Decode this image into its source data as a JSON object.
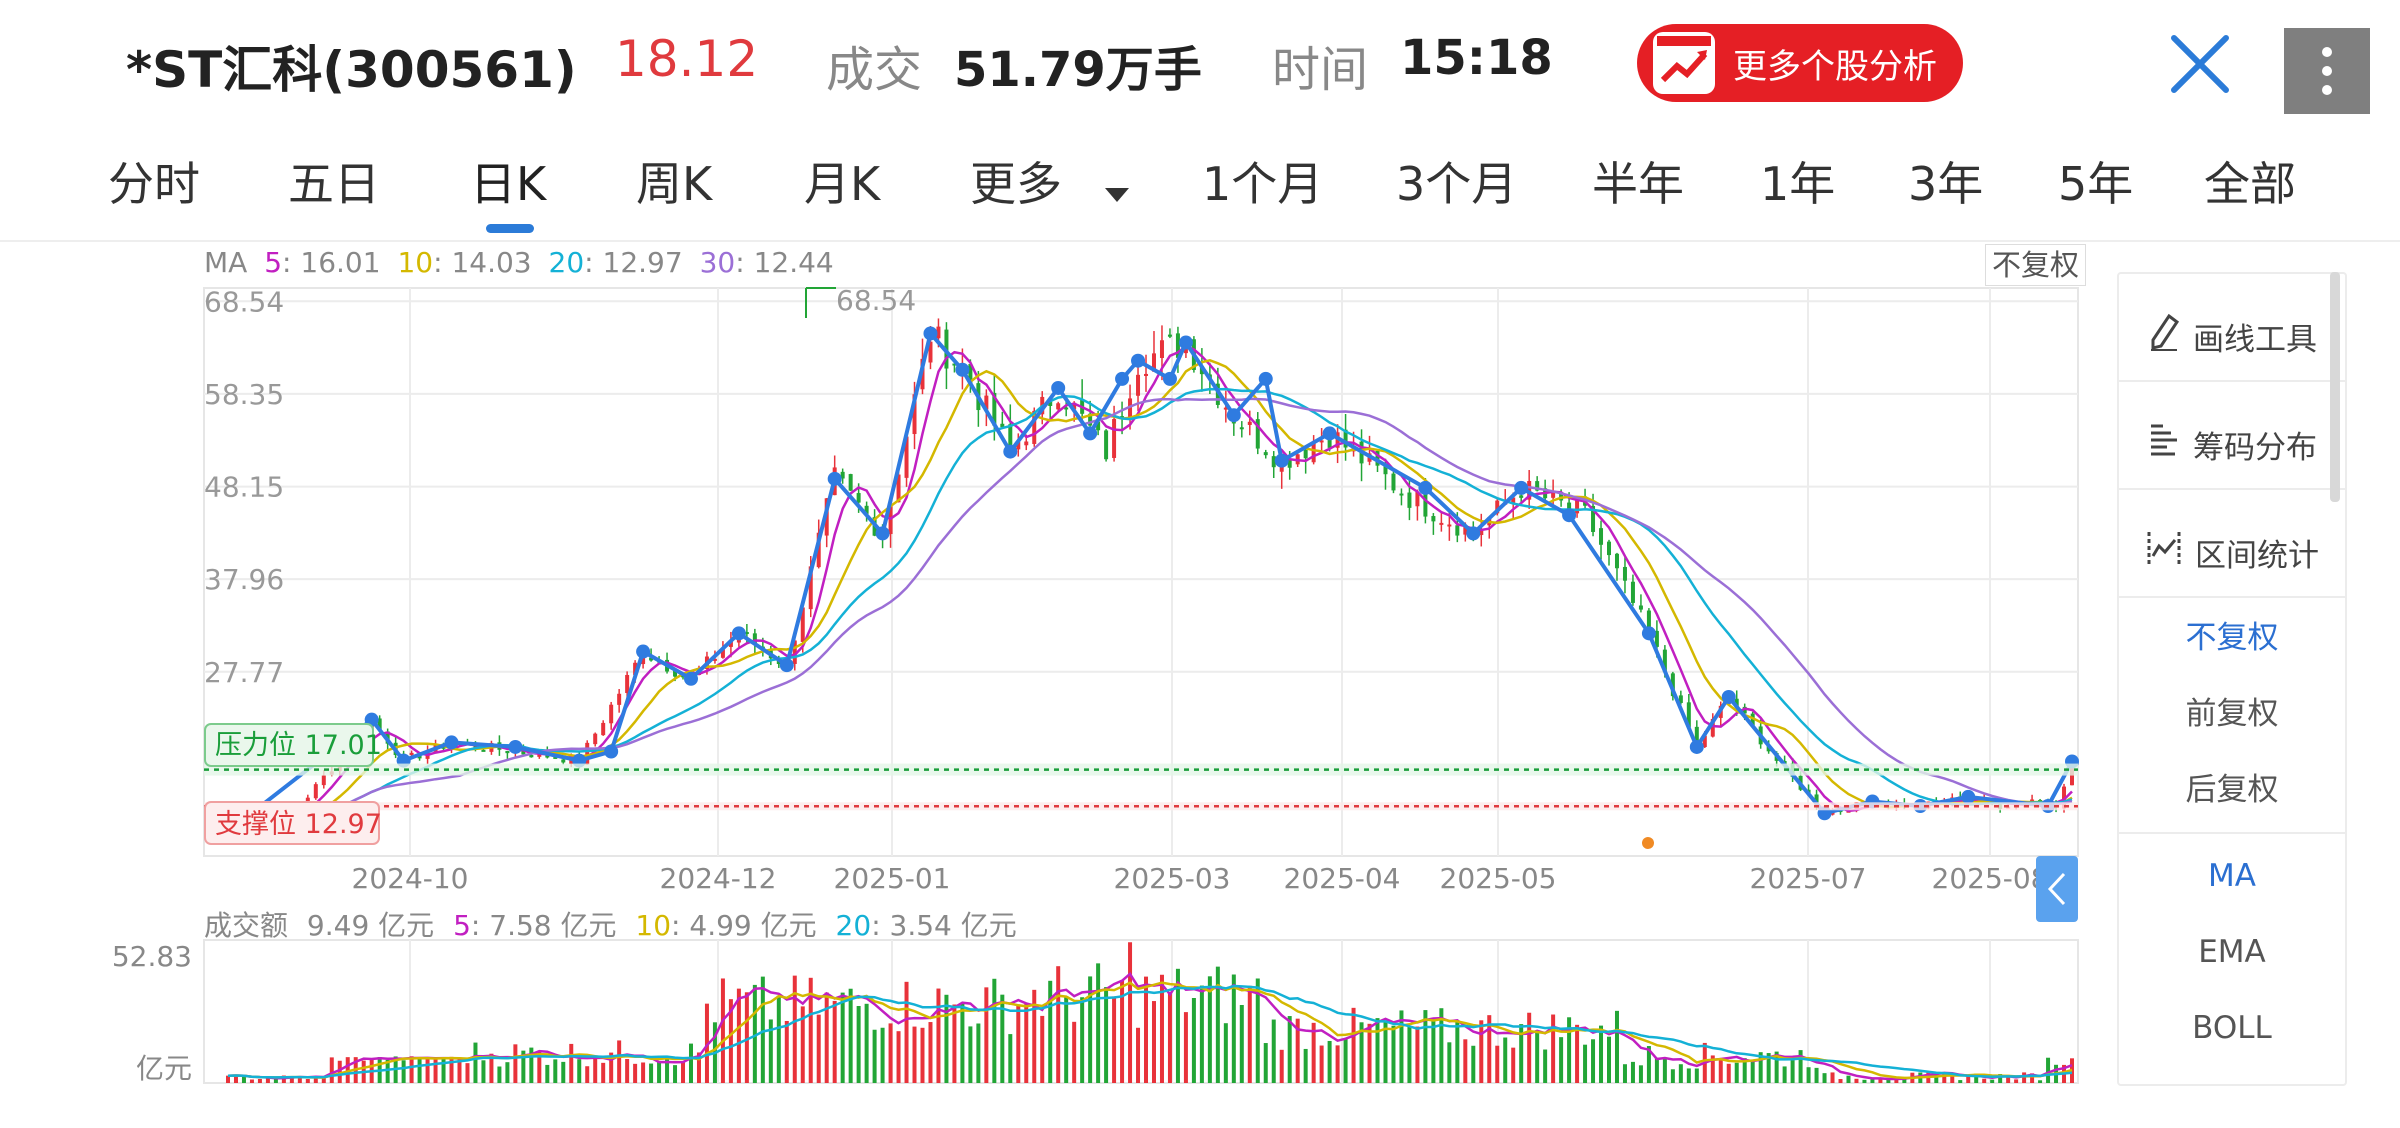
{
  "header": {
    "stock_name": "*ST汇科(300561)",
    "price": "18.12",
    "volume_label": "成交",
    "volume_value": "51.79万手",
    "time_label": "时间",
    "time_value": "15:18",
    "more_button": "更多个股分析",
    "close_icon": "close-icon",
    "menu_icon": "more-vertical-icon"
  },
  "tabs": [
    "分时",
    "五日",
    "日K",
    "周K",
    "月K",
    "更多",
    "1个月",
    "3个月",
    "半年",
    "1年",
    "3年",
    "5年",
    "全部"
  ],
  "active_tab": "日K",
  "ma_legend": {
    "label": "MA",
    "items": [
      {
        "key": "5",
        "value": "16.01",
        "color": "#c11fc1"
      },
      {
        "key": "10",
        "value": "14.03",
        "color": "#d4b800"
      },
      {
        "key": "20",
        "value": "12.97",
        "color": "#14b1d6"
      },
      {
        "key": "30",
        "value": "12.44",
        "color": "#9b6fd6"
      }
    ]
  },
  "adjust_label": "不复权",
  "price_axis": [
    "68.54",
    "58.35",
    "48.15",
    "37.96",
    "27.77"
  ],
  "max_label": "68.54",
  "pressure_label": "压力位 17.01",
  "support_label": "支撑位 12.97",
  "date_axis": [
    "2024-10",
    "2024-12",
    "2025-01",
    "2025-03",
    "2025-04",
    "2025-05",
    "2025-07",
    "2025-08"
  ],
  "volume_legend": {
    "label": "成交额",
    "value": "9.49 亿元",
    "items": [
      {
        "key": "5",
        "value": "7.58 亿元",
        "color": "#c11fc1"
      },
      {
        "key": "10",
        "value": "4.99 亿元",
        "color": "#d4b800"
      },
      {
        "key": "20",
        "value": "3.54 亿元",
        "color": "#14b1d6"
      }
    ]
  },
  "volume_axis_top": "52.83",
  "volume_axis_unit": "亿元",
  "side_panel": {
    "tools": [
      "画线工具",
      "筹码分布",
      "区间统计"
    ],
    "tool_icons": [
      "pen-icon",
      "chip-distribution-icon",
      "interval-stats-icon"
    ],
    "adjust": [
      "不复权",
      "前复权",
      "后复权"
    ],
    "indicators": [
      "MA",
      "EMA",
      "BOLL"
    ]
  },
  "colors": {
    "up": "#e8323a",
    "down": "#22a536",
    "accent": "#2b7bd8",
    "pressure": "#1a9e3a",
    "support": "#e03a3e"
  },
  "chart_data": {
    "type": "candlestick",
    "price_axis_ticks": [
      68.54,
      58.35,
      48.15,
      37.96,
      27.77
    ],
    "pressure_level": 17.01,
    "support_level": 12.97,
    "high_marked": 68.54,
    "close_path": [
      [
        "2024-09",
        10.2
      ],
      [
        "2024-10",
        22.5
      ],
      [
        "2024-10",
        18.0
      ],
      [
        "2024-10",
        20.0
      ],
      [
        "2024-11",
        18.5
      ],
      [
        "2024-11",
        18.0
      ],
      [
        "2024-11",
        30.0
      ],
      [
        "2024-11",
        27.0
      ],
      [
        "2024-11",
        32.0
      ],
      [
        "2024-12",
        28.5
      ],
      [
        "2024-12",
        49.0
      ],
      [
        "2024-12",
        43.0
      ],
      [
        "2024-12",
        65.0
      ],
      [
        "2024-12",
        61.0
      ],
      [
        "2025-01",
        52.0
      ],
      [
        "2025-01",
        58.0
      ],
      [
        "2025-01",
        60.0
      ],
      [
        "2025-01",
        62.0
      ],
      [
        "2025-02",
        56.0
      ],
      [
        "2025-02",
        51.0
      ],
      [
        "2025-02",
        54.0
      ],
      [
        "2025-03",
        43.0
      ],
      [
        "2025-03",
        48.0
      ],
      [
        "2025-04",
        19.5
      ],
      [
        "2025-04",
        25.0
      ],
      [
        "2025-05",
        12.2
      ],
      [
        "2025-05",
        13.5
      ],
      [
        "2025-06",
        13.0
      ],
      [
        "2025-06",
        14.0
      ],
      [
        "2025-07",
        13.0
      ],
      [
        "2025-07",
        13.8
      ],
      [
        "2025-08",
        13.2
      ],
      [
        "2025-08",
        17.9
      ]
    ],
    "ma_latest": {
      "MA5": 16.01,
      "MA10": 14.03,
      "MA20": 12.97,
      "MA30": 12.44
    },
    "volume_latest": {
      "turnover": 9.49,
      "MA5": 7.58,
      "MA10": 4.99,
      "MA20": 3.54
    },
    "volume_ymax": 52.83,
    "x_ticks": [
      "2024-10",
      "2024-12",
      "2025-01",
      "2025-03",
      "2025-04",
      "2025-05",
      "2025-07",
      "2025-08"
    ]
  }
}
